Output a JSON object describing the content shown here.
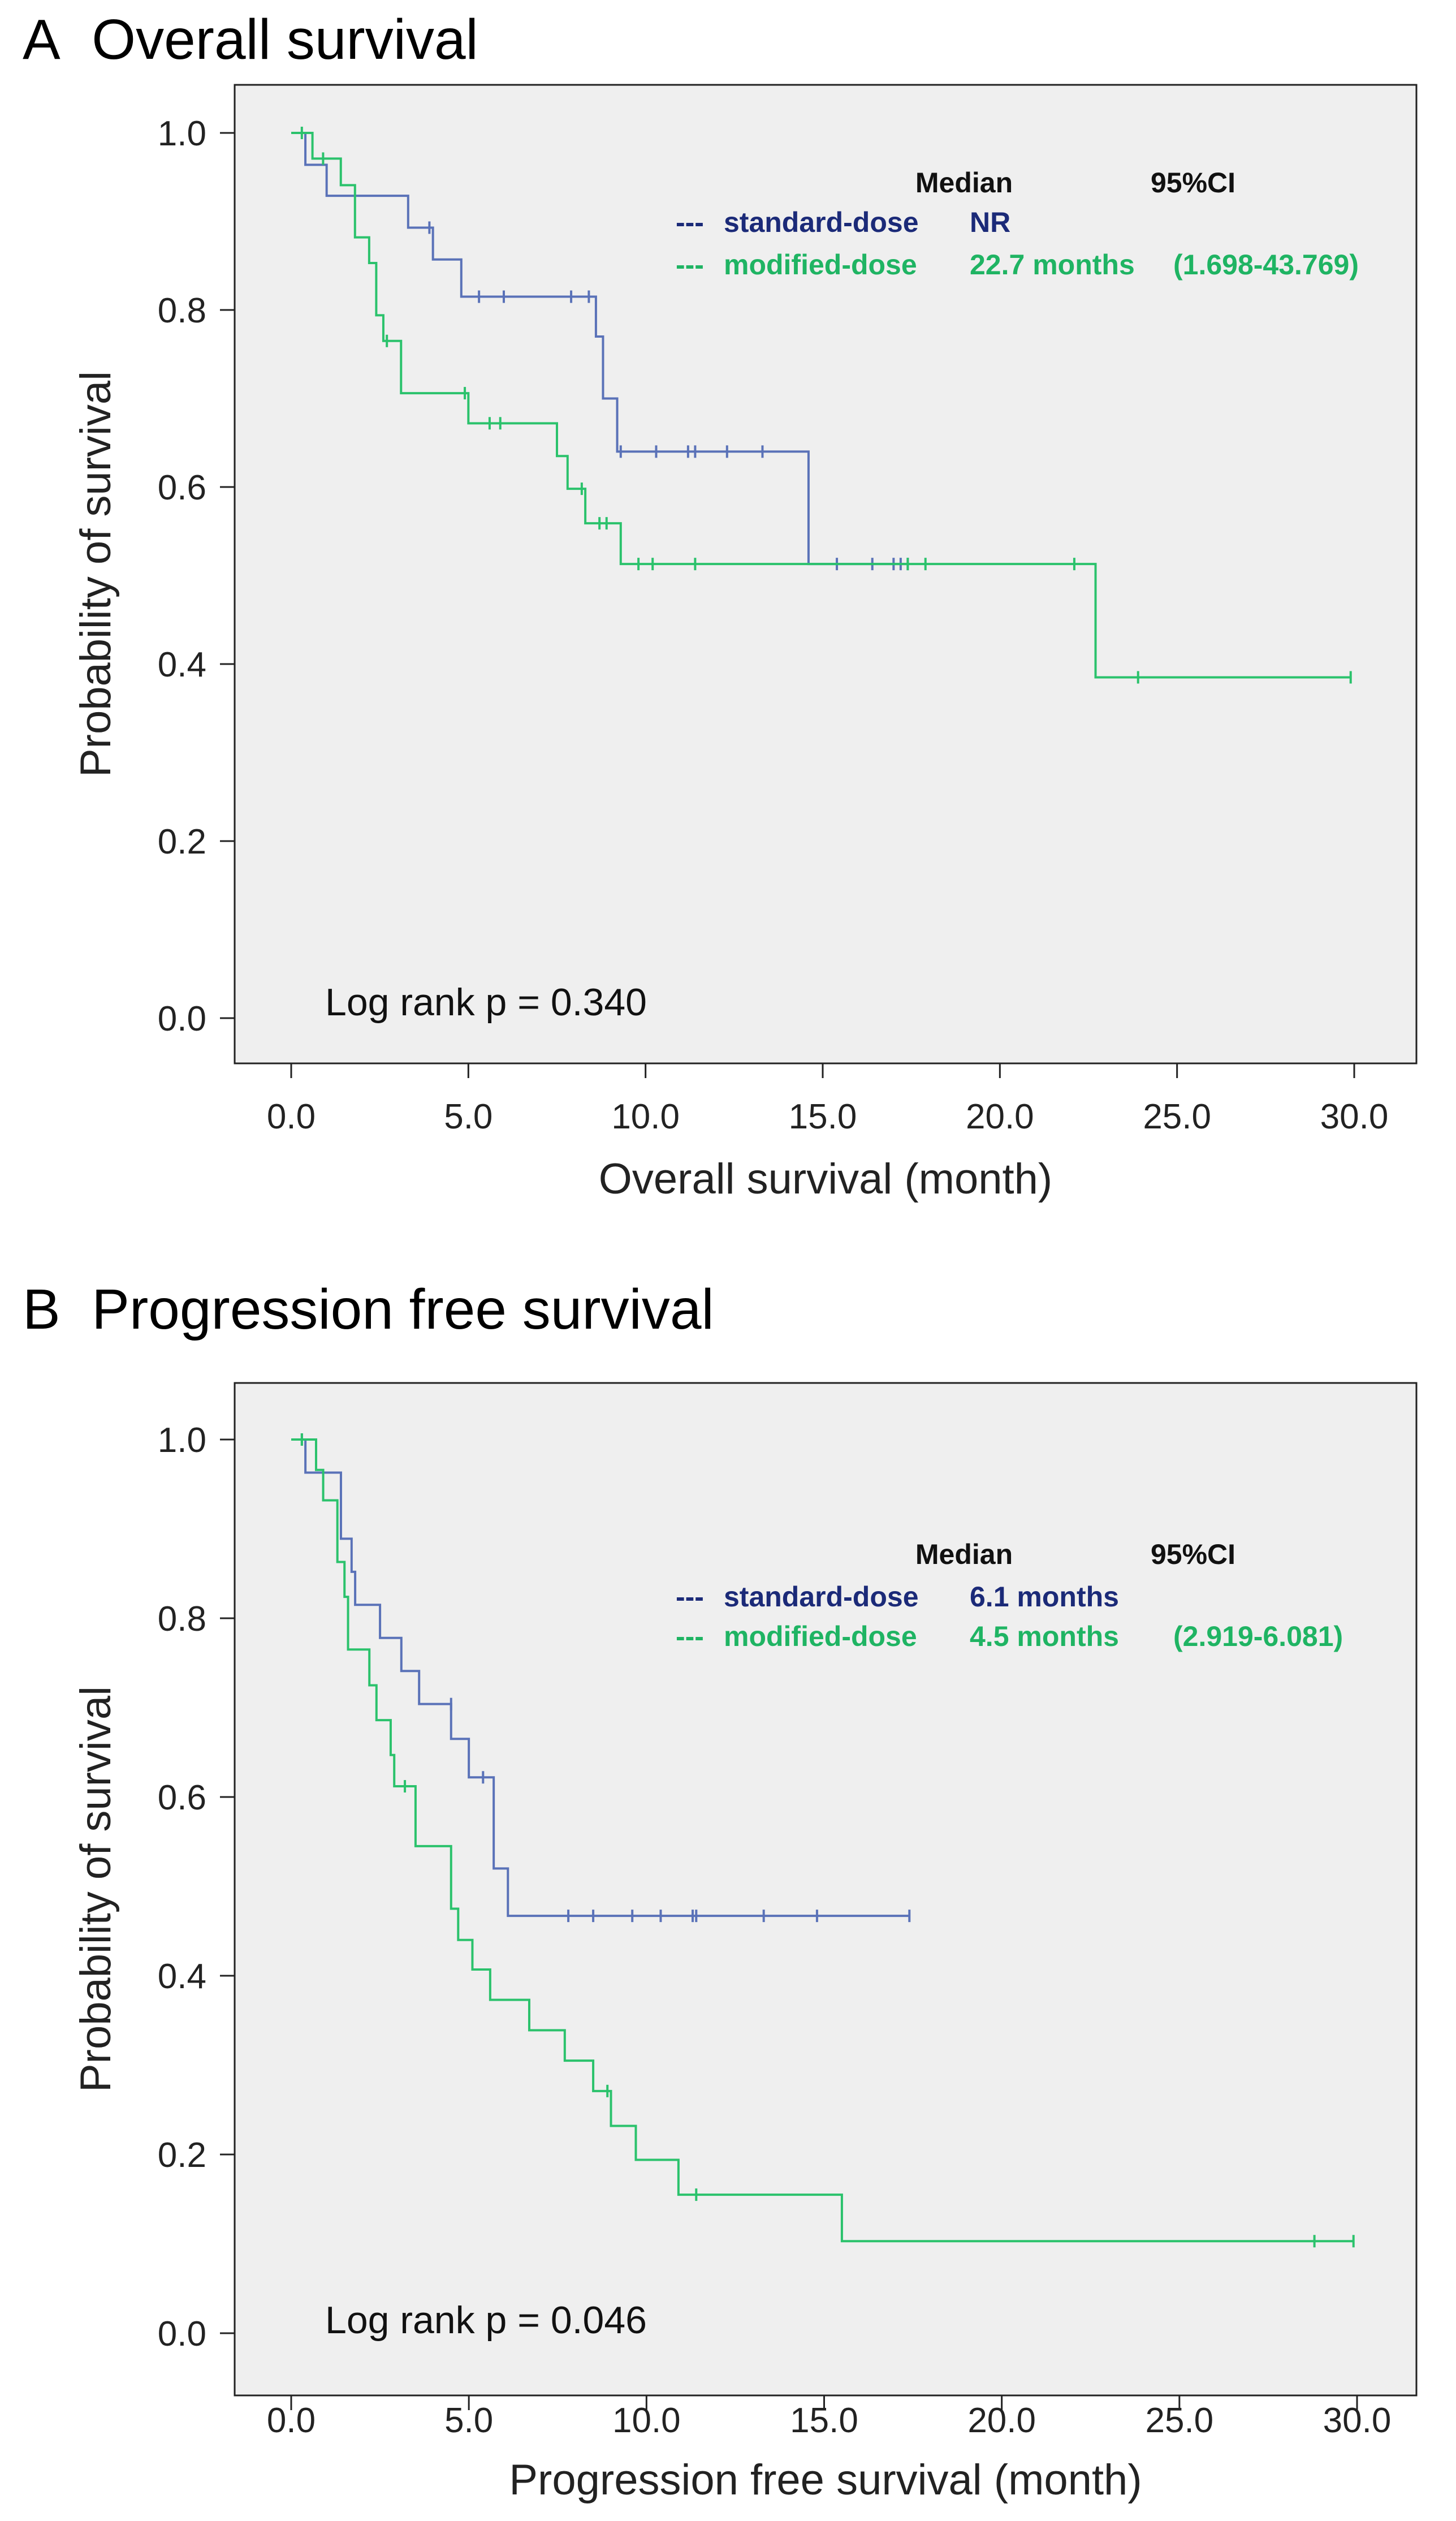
{
  "colors": {
    "standard": "#5A72B8",
    "modified": "#2BC26C",
    "standard_text": "#1B2A78",
    "modified_text": "#1FB463",
    "plot_bg": "#EFEFEF"
  },
  "chart_data": [
    {
      "type": "line",
      "panel_label": "A",
      "title": "Overall survival",
      "xlabel": "Overall survival (month)",
      "ylabel": "Probability of survival",
      "xlim": [
        0,
        30
      ],
      "ylim": [
        0,
        1
      ],
      "xticks": [
        "0.0",
        "5.0",
        "10.0",
        "15.0",
        "20.0",
        "25.0",
        "30.0"
      ],
      "yticks": [
        "0.0",
        "0.2",
        "0.4",
        "0.6",
        "0.8",
        "1.0"
      ],
      "annotation": "Log rank p = 0.340",
      "legend": {
        "header_median": "Median",
        "header_ci": "95%CI",
        "rows": [
          {
            "prefix": "---",
            "name": "standard-dose",
            "median": "NR",
            "ci": "",
            "series": "standard"
          },
          {
            "prefix": "---",
            "name": "modified-dose",
            "median": "22.7 months",
            "ci": "(1.698-43.769)",
            "series": "modified"
          }
        ]
      },
      "series": [
        {
          "name": "standard-dose",
          "color_key": "standard",
          "steps": [
            [
              0,
              1.0
            ],
            [
              0.4,
              0.964
            ],
            [
              1.0,
              0.929
            ],
            [
              3.3,
              0.893
            ],
            [
              4.0,
              0.857
            ],
            [
              4.8,
              0.815
            ],
            [
              8.6,
              0.77
            ],
            [
              8.8,
              0.7
            ],
            [
              9.2,
              0.64
            ],
            [
              14.6,
              0.513
            ],
            [
              17.4,
              0.513
            ]
          ],
          "censored": [
            [
              3.9,
              0.893
            ],
            [
              5.3,
              0.815
            ],
            [
              6.0,
              0.815
            ],
            [
              7.9,
              0.815
            ],
            [
              8.4,
              0.815
            ],
            [
              9.3,
              0.64
            ],
            [
              10.3,
              0.64
            ],
            [
              11.2,
              0.64
            ],
            [
              11.4,
              0.64
            ],
            [
              12.3,
              0.64
            ],
            [
              13.3,
              0.64
            ],
            [
              15.4,
              0.513
            ],
            [
              16.4,
              0.513
            ],
            [
              17.0,
              0.513
            ],
            [
              17.2,
              0.513
            ],
            [
              17.4,
              0.513
            ]
          ]
        },
        {
          "name": "modified-dose",
          "color_key": "modified",
          "steps": [
            [
              0,
              1.0
            ],
            [
              0.6,
              0.971
            ],
            [
              1.4,
              0.941
            ],
            [
              1.8,
              0.882
            ],
            [
              2.2,
              0.853
            ],
            [
              2.4,
              0.794
            ],
            [
              2.6,
              0.765
            ],
            [
              3.1,
              0.706
            ],
            [
              5.0,
              0.672
            ],
            [
              7.5,
              0.635
            ],
            [
              7.8,
              0.598
            ],
            [
              8.3,
              0.559
            ],
            [
              9.3,
              0.513
            ],
            [
              22.7,
              0.385
            ],
            [
              29.9,
              0.385
            ]
          ],
          "censored": [
            [
              0.3,
              1.0
            ],
            [
              0.9,
              0.971
            ],
            [
              2.7,
              0.765
            ],
            [
              4.9,
              0.706
            ],
            [
              5.6,
              0.672
            ],
            [
              5.9,
              0.672
            ],
            [
              8.2,
              0.598
            ],
            [
              8.7,
              0.559
            ],
            [
              8.9,
              0.559
            ],
            [
              9.8,
              0.513
            ],
            [
              10.2,
              0.513
            ],
            [
              11.4,
              0.513
            ],
            [
              17.4,
              0.513
            ],
            [
              17.9,
              0.513
            ],
            [
              22.1,
              0.513
            ],
            [
              23.9,
              0.385
            ],
            [
              29.9,
              0.385
            ]
          ]
        }
      ]
    },
    {
      "type": "line",
      "panel_label": "B",
      "title": "Progression free survival",
      "xlabel": "Progression free survival (month)",
      "ylabel": "Probability of survival",
      "xlim": [
        0,
        30
      ],
      "ylim": [
        0,
        1
      ],
      "xticks": [
        "0.0",
        "5.0",
        "10.0",
        "15.0",
        "20.0",
        "25.0",
        "30.0"
      ],
      "yticks": [
        "0.0",
        "0.2",
        "0.4",
        "0.6",
        "0.8",
        "1.0"
      ],
      "annotation": "Log rank p = 0.046",
      "legend": {
        "header_median": "Median",
        "header_ci": "95%CI",
        "rows": [
          {
            "prefix": "---",
            "name": "standard-dose",
            "median": "6.1 months",
            "ci": "",
            "series": "standard"
          },
          {
            "prefix": "---",
            "name": "modified-dose",
            "median": "4.5 months",
            "ci": "(2.919-6.081)",
            "series": "modified"
          }
        ]
      },
      "series": [
        {
          "name": "standard-dose",
          "color_key": "standard",
          "steps": [
            [
              0,
              1.0
            ],
            [
              0.4,
              0.963
            ],
            [
              1.4,
              0.889
            ],
            [
              1.7,
              0.852
            ],
            [
              1.8,
              0.815
            ],
            [
              2.5,
              0.778
            ],
            [
              3.1,
              0.741
            ],
            [
              3.6,
              0.704
            ],
            [
              4.5,
              0.665
            ],
            [
              5.0,
              0.622
            ],
            [
              5.7,
              0.52
            ],
            [
              6.1,
              0.467
            ],
            [
              17.4,
              0.467
            ]
          ],
          "censored": [
            [
              0.3,
              1.0
            ],
            [
              4.5,
              0.704
            ],
            [
              5.4,
              0.622
            ],
            [
              7.8,
              0.467
            ],
            [
              8.5,
              0.467
            ],
            [
              9.6,
              0.467
            ],
            [
              10.4,
              0.467
            ],
            [
              11.3,
              0.467
            ],
            [
              11.4,
              0.467
            ],
            [
              13.3,
              0.467
            ],
            [
              14.8,
              0.467
            ],
            [
              17.4,
              0.467
            ]
          ]
        },
        {
          "name": "modified-dose",
          "color_key": "modified",
          "steps": [
            [
              0,
              1.0
            ],
            [
              0.7,
              0.966
            ],
            [
              0.9,
              0.932
            ],
            [
              1.3,
              0.863
            ],
            [
              1.5,
              0.824
            ],
            [
              1.6,
              0.765
            ],
            [
              2.2,
              0.725
            ],
            [
              2.4,
              0.686
            ],
            [
              2.8,
              0.647
            ],
            [
              2.9,
              0.612
            ],
            [
              3.5,
              0.545
            ],
            [
              4.5,
              0.475
            ],
            [
              4.7,
              0.44
            ],
            [
              5.1,
              0.407
            ],
            [
              5.6,
              0.373
            ],
            [
              6.7,
              0.339
            ],
            [
              7.7,
              0.305
            ],
            [
              8.5,
              0.271
            ],
            [
              9.0,
              0.232
            ],
            [
              9.7,
              0.194
            ],
            [
              10.9,
              0.155
            ],
            [
              15.5,
              0.103
            ],
            [
              29.9,
              0.103
            ]
          ],
          "censored": [
            [
              0.3,
              1.0
            ],
            [
              3.2,
              0.612
            ],
            [
              8.9,
              0.271
            ],
            [
              11.4,
              0.155
            ],
            [
              28.8,
              0.103
            ],
            [
              29.9,
              0.103
            ]
          ]
        }
      ]
    }
  ]
}
